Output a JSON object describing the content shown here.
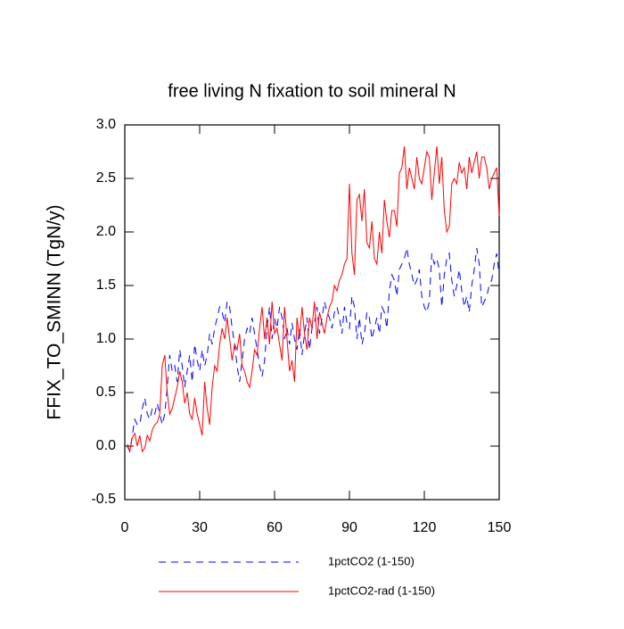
{
  "chart_data": {
    "type": "line",
    "title": "free living N fixation to soil mineral N",
    "y_label": "FFIX_TO_SMINN  (TgN/y)",
    "xlim": [
      0,
      150
    ],
    "xticks": [
      0,
      30,
      60,
      90,
      120,
      150
    ],
    "ylim": [
      -0.5,
      3.0
    ],
    "yticks": [
      -0.5,
      {
        "value": 0,
        "label": "0.0"
      },
      0.5,
      {
        "value": 1,
        "label": "1.0"
      },
      1.5,
      {
        "value": 2,
        "label": "2.0"
      },
      2.5,
      {
        "value": 3,
        "label": "3.0"
      }
    ],
    "x": [
      1,
      2,
      3,
      4,
      5,
      6,
      7,
      8,
      9,
      10,
      11,
      12,
      13,
      14,
      15,
      16,
      17,
      18,
      19,
      20,
      21,
      22,
      23,
      24,
      25,
      26,
      27,
      28,
      29,
      30,
      31,
      32,
      33,
      34,
      35,
      36,
      37,
      38,
      39,
      40,
      41,
      42,
      43,
      44,
      45,
      46,
      47,
      48,
      49,
      50,
      51,
      52,
      53,
      54,
      55,
      56,
      57,
      58,
      59,
      60,
      61,
      62,
      63,
      64,
      65,
      66,
      67,
      68,
      69,
      70,
      71,
      72,
      73,
      74,
      75,
      76,
      77,
      78,
      79,
      80,
      81,
      82,
      83,
      84,
      85,
      86,
      87,
      88,
      89,
      90,
      91,
      92,
      93,
      94,
      95,
      96,
      97,
      98,
      99,
      100,
      101,
      102,
      103,
      104,
      105,
      106,
      107,
      108,
      109,
      110,
      111,
      112,
      113,
      114,
      115,
      116,
      117,
      118,
      119,
      120,
      121,
      122,
      123,
      124,
      125,
      126,
      127,
      128,
      129,
      130,
      131,
      132,
      133,
      134,
      135,
      136,
      137,
      138,
      139,
      140,
      141,
      142,
      143,
      144,
      145,
      146,
      147,
      148,
      149,
      150
    ],
    "series": [
      {
        "name": "1pctCO2 (1-150)",
        "color": "#0000ff",
        "dash": "8 6",
        "values": [
          0.0,
          -0.05,
          0.1,
          0.25,
          0.2,
          0.2,
          0.35,
          0.45,
          0.3,
          0.25,
          0.35,
          0.3,
          0.4,
          0.3,
          0.2,
          0.3,
          0.55,
          0.85,
          0.7,
          0.75,
          0.6,
          0.9,
          0.75,
          0.55,
          0.7,
          0.85,
          0.6,
          0.95,
          0.8,
          0.7,
          0.9,
          0.75,
          0.85,
          1.05,
          0.95,
          1.1,
          1.2,
          1.3,
          1.25,
          1.15,
          1.35,
          1.3,
          1.1,
          0.95,
          0.75,
          0.6,
          0.8,
          1.0,
          1.1,
          1.05,
          1.2,
          1.05,
          0.9,
          0.75,
          0.65,
          0.8,
          1.1,
          1.3,
          1.0,
          1.2,
          1.1,
          1.3,
          1.2,
          1.0,
          1.1,
          0.95,
          1.15,
          1.0,
          0.9,
          1.1,
          0.85,
          1.05,
          1.2,
          0.9,
          1.1,
          1.15,
          1.3,
          1.05,
          1.2,
          1.35,
          1.25,
          1.2,
          1.1,
          1.25,
          1.3,
          1.2,
          1.05,
          1.3,
          1.15,
          1.1,
          1.4,
          1.3,
          1.0,
          1.2,
          0.95,
          1.05,
          1.25,
          1.2,
          1.0,
          1.1,
          1.2,
          1.05,
          1.3,
          1.25,
          1.1,
          1.45,
          1.6,
          1.55,
          1.4,
          1.65,
          1.7,
          1.75,
          1.85,
          1.7,
          1.6,
          1.5,
          1.55,
          1.65,
          1.4,
          1.3,
          1.25,
          1.35,
          1.8,
          1.7,
          1.75,
          1.65,
          1.3,
          1.6,
          1.75,
          1.8,
          1.55,
          1.4,
          1.5,
          1.65,
          1.45,
          1.3,
          1.4,
          1.25,
          1.5,
          1.65,
          1.85,
          1.7,
          1.3,
          1.35,
          1.4,
          1.5,
          1.55,
          1.7,
          1.8,
          1.6
        ]
      },
      {
        "name": "1pctCO2-rad (1-150)",
        "color": "#ff0000",
        "values": [
          0.02,
          -0.05,
          0.08,
          0.12,
          0.0,
          0.1,
          -0.05,
          -0.02,
          0.1,
          0.05,
          0.15,
          0.2,
          0.22,
          0.3,
          0.75,
          0.85,
          0.5,
          0.3,
          0.35,
          0.45,
          0.55,
          0.7,
          0.6,
          0.4,
          0.5,
          0.3,
          0.25,
          0.45,
          0.3,
          0.2,
          0.1,
          0.6,
          0.35,
          0.2,
          0.55,
          0.75,
          0.7,
          0.95,
          1.1,
          1.0,
          1.2,
          1.0,
          0.8,
          0.95,
          0.9,
          1.05,
          0.75,
          0.7,
          0.6,
          0.55,
          0.7,
          0.9,
          0.85,
          1.1,
          1.3,
          1.0,
          1.2,
          0.95,
          1.35,
          1.05,
          1.1,
          0.95,
          0.8,
          1.3,
          1.0,
          0.7,
          0.8,
          0.6,
          1.2,
          1.0,
          1.3,
          1.05,
          0.9,
          1.2,
          1.1,
          1.35,
          1.0,
          1.25,
          1.15,
          1.05,
          1.2,
          1.3,
          1.35,
          1.5,
          1.45,
          1.55,
          1.6,
          1.7,
          1.75,
          2.45,
          1.8,
          1.6,
          2.3,
          2.35,
          2.1,
          2.4,
          1.9,
          1.85,
          2.1,
          1.75,
          1.7,
          2.0,
          1.8,
          2.3,
          2.1,
          1.95,
          2.2,
          2.2,
          2.05,
          2.55,
          2.6,
          2.8,
          2.4,
          2.6,
          2.5,
          2.4,
          2.7,
          2.5,
          2.45,
          2.6,
          2.75,
          2.7,
          2.3,
          2.55,
          2.8,
          2.45,
          2.7,
          2.2,
          2.0,
          2.05,
          2.45,
          2.5,
          2.45,
          2.65,
          2.55,
          2.6,
          2.4,
          2.7,
          2.55,
          2.65,
          2.75,
          2.5,
          2.7,
          2.7,
          2.6,
          2.4,
          2.5,
          2.55,
          2.6,
          2.15
        ]
      }
    ]
  }
}
